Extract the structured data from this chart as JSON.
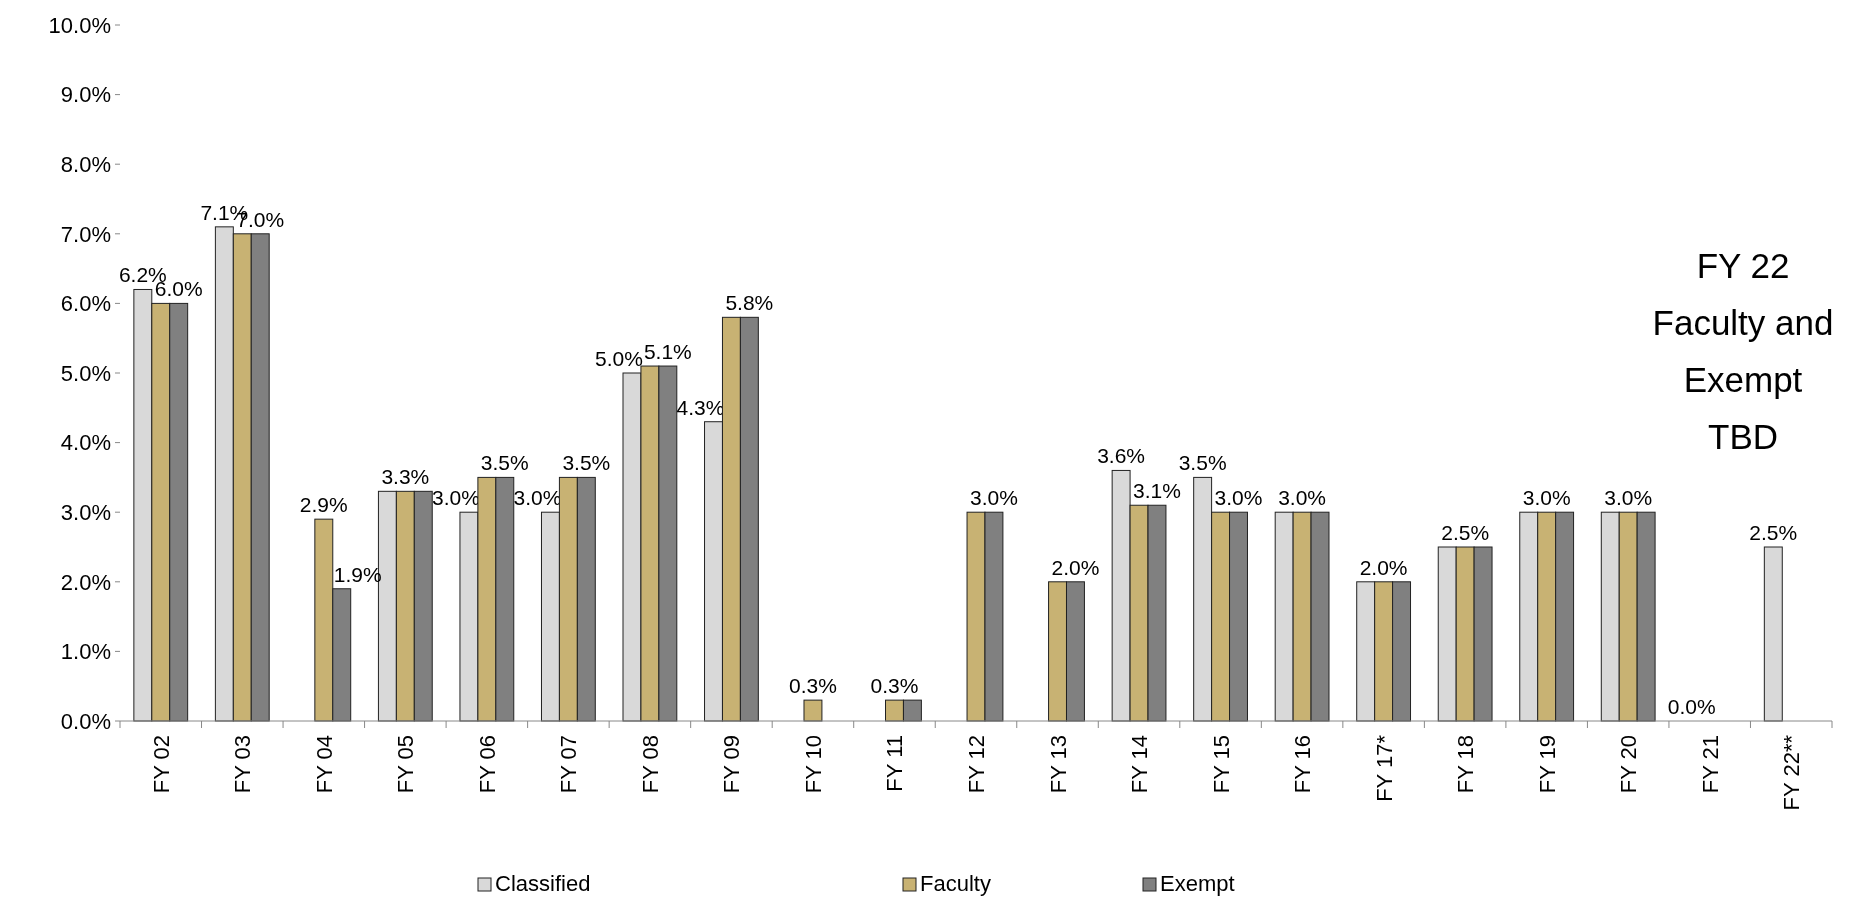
{
  "chart_data": {
    "type": "bar",
    "categories": [
      "FY 02",
      "FY 03",
      "FY 04",
      "FY 05",
      "FY 06",
      "FY 07",
      "FY 08",
      "FY 09",
      "FY 10",
      "FY 11",
      "FY 12",
      "FY 13",
      "FY 14",
      "FY 15",
      "FY 16",
      "FY 17*",
      "FY 18",
      "FY 19",
      "FY 20",
      "FY 21",
      "FY 22**"
    ],
    "series": [
      {
        "name": "Classified",
        "color": "#d9d9d9",
        "values": [
          6.2,
          7.1,
          null,
          3.3,
          3.0,
          3.0,
          5.0,
          4.3,
          null,
          null,
          null,
          null,
          3.6,
          3.5,
          3.0,
          2.0,
          2.5,
          3.0,
          3.0,
          0.0,
          2.5
        ],
        "value_labels": [
          "6.2%",
          "7.1%",
          null,
          null,
          "3.0%",
          "3.0%",
          "5.0%",
          "4.3%",
          null,
          null,
          null,
          null,
          "3.6%",
          "3.5%",
          null,
          null,
          null,
          null,
          null,
          "0.0%",
          "2.5%"
        ]
      },
      {
        "name": "Faculty",
        "color": "#c8b273",
        "values": [
          6.0,
          7.0,
          2.9,
          3.3,
          3.5,
          3.5,
          5.1,
          5.8,
          0.3,
          0.3,
          3.0,
          2.0,
          3.1,
          3.0,
          3.0,
          2.0,
          2.5,
          3.0,
          3.0,
          null,
          null
        ],
        "value_labels": [
          null,
          null,
          "2.9%",
          "3.3%",
          null,
          null,
          null,
          null,
          "0.3%",
          "0.3%",
          null,
          null,
          null,
          null,
          "3.0%",
          "2.0%",
          "2.5%",
          "3.0%",
          "3.0%",
          null,
          null
        ]
      },
      {
        "name": "Exempt",
        "color": "#808080",
        "values": [
          6.0,
          7.0,
          1.9,
          3.3,
          3.5,
          3.5,
          5.1,
          5.8,
          null,
          0.3,
          3.0,
          2.0,
          3.1,
          3.0,
          3.0,
          2.0,
          2.5,
          3.0,
          3.0,
          null,
          null
        ],
        "value_labels": [
          "6.0%",
          "7.0%",
          "1.9%",
          null,
          "3.5%",
          "3.5%",
          "5.1%",
          "5.8%",
          null,
          null,
          "3.0%",
          "2.0%",
          "3.1%",
          "3.0%",
          null,
          null,
          null,
          null,
          null,
          null,
          null
        ]
      }
    ],
    "ylim": [
      0,
      10
    ],
    "yticks": [
      {
        "value": 0,
        "label": "0.0%"
      },
      {
        "value": 1,
        "label": "1.0%"
      },
      {
        "value": 2,
        "label": "2.0%"
      },
      {
        "value": 3,
        "label": "3.0%"
      },
      {
        "value": 4,
        "label": "4.0%"
      },
      {
        "value": 5,
        "label": "5.0%"
      },
      {
        "value": 6,
        "label": "6.0%"
      },
      {
        "value": 7,
        "label": "7.0%"
      },
      {
        "value": 8,
        "label": "8.0%"
      },
      {
        "value": 9,
        "label": "9.0%"
      },
      {
        "value": 10,
        "label": "10.0%"
      }
    ],
    "grid": false,
    "legend": "bottom",
    "annotations": [
      "FY 22\nFaculty and\nExempt\nTBD"
    ]
  }
}
